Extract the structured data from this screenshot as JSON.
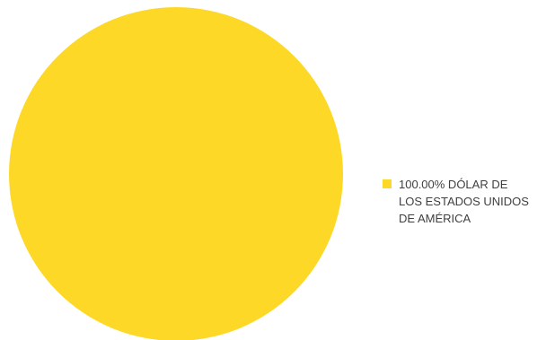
{
  "chart_data": {
    "type": "pie",
    "title": "",
    "slices": [
      {
        "label": "100.00% DÓLAR DE LOS ESTADOS UNIDOS DE AMÉRICA",
        "value": 100,
        "color": "#FDD827"
      }
    ],
    "legend_position": "right"
  }
}
